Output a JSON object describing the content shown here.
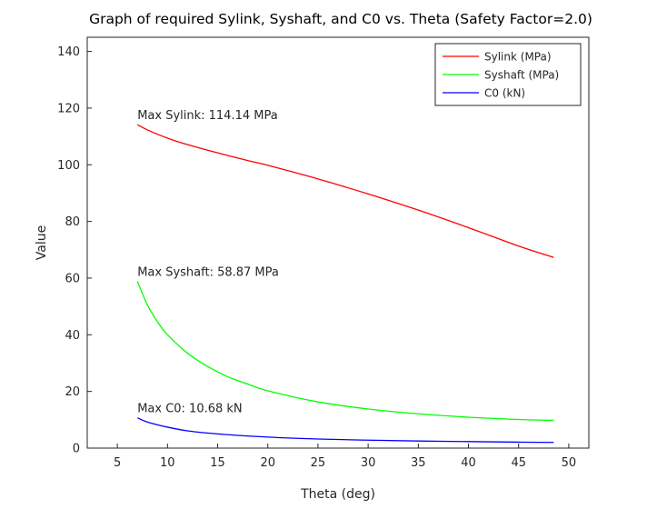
{
  "chart_data": {
    "type": "line",
    "title": "Graph of required Sylink, Syshaft, and C0 vs. Theta (Safety Factor=2.0)",
    "xlabel": "Theta (deg)",
    "ylabel": "Value",
    "xlim": [
      2,
      52
    ],
    "ylim": [
      0,
      145
    ],
    "xticks": [
      5,
      10,
      15,
      20,
      25,
      30,
      35,
      40,
      45,
      50
    ],
    "yticks": [
      0,
      20,
      40,
      60,
      80,
      100,
      120,
      140
    ],
    "grid": false,
    "legend_position": "top-right",
    "series": [
      {
        "name": "Sylink (MPa)",
        "color": "#ff0000",
        "x": [
          7,
          8,
          10,
          12,
          15,
          18,
          20,
          25,
          30,
          35,
          40,
          45,
          48.5
        ],
        "y": [
          114.14,
          112.3,
          109.4,
          107.1,
          104.2,
          101.5,
          99.8,
          95.0,
          89.7,
          84.0,
          77.8,
          71.3,
          67.3
        ]
      },
      {
        "name": "Syshaft (MPa)",
        "color": "#00ff00",
        "x": [
          7,
          8,
          9,
          10,
          12,
          14,
          16,
          18,
          20,
          25,
          30,
          35,
          40,
          45,
          48.5
        ],
        "y": [
          58.87,
          50.5,
          44.6,
          40.0,
          33.5,
          28.8,
          25.2,
          22.6,
          20.2,
          16.3,
          13.8,
          12.1,
          10.9,
          10.1,
          9.8
        ]
      },
      {
        "name": "C0 (kN)",
        "color": "#0000ff",
        "x": [
          7,
          8,
          10,
          12,
          15,
          20,
          25,
          30,
          35,
          40,
          45,
          48.5
        ],
        "y": [
          10.68,
          9.2,
          7.4,
          6.1,
          5.0,
          3.9,
          3.2,
          2.8,
          2.5,
          2.3,
          2.1,
          2.0
        ]
      }
    ],
    "annotations": [
      {
        "text": "Max Sylink: 114.14 MPa",
        "x": 7,
        "y": 114.14
      },
      {
        "text": "Max Syshaft: 58.87 MPa",
        "x": 7,
        "y": 58.87
      },
      {
        "text": "Max C0: 10.68 kN",
        "x": 7,
        "y": 10.68
      }
    ]
  }
}
